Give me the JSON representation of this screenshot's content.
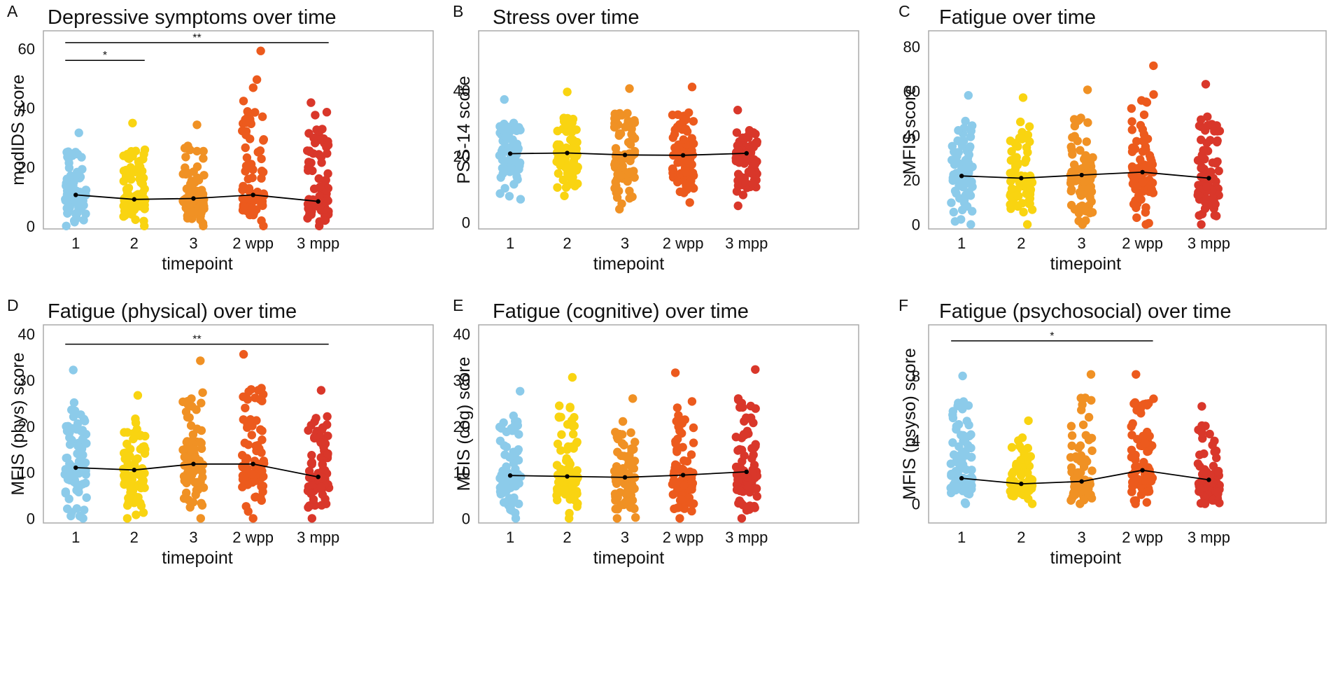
{
  "figure": {
    "timepoints": [
      "1",
      "2",
      "3",
      "2 wpp",
      "3 mpp"
    ],
    "timepoint_colors": [
      "#8ccbea",
      "#f9d411",
      "#f09124",
      "#ec5a1d",
      "#d9372a"
    ]
  },
  "chart_data": [
    {
      "type": "scatter",
      "panel": "A",
      "title": "Depressive symptoms over time",
      "xlabel": "timepoint",
      "ylabel": "modIDS score",
      "categories": [
        "1",
        "2",
        "3",
        "2 wpp",
        "3 mpp"
      ],
      "ylim": [
        -1,
        66
      ],
      "yticks": [
        0,
        20,
        40,
        60
      ],
      "means": [
        10.5,
        9.0,
        9.3,
        10.5,
        8.3
      ],
      "maxima": [
        31.5,
        34.8,
        34.2,
        59.2,
        41.7
      ],
      "extremes": [
        [],
        [],
        [],
        [
          49.5,
          36,
          35,
          25
        ],
        [
          38.5,
          37.5,
          24.5
        ]
      ],
      "significance": [
        {
          "from": 0,
          "to": 4,
          "label": "**",
          "y": 62
        },
        {
          "from": 0,
          "to": 1,
          "label": "*",
          "y": 56
        }
      ]
    },
    {
      "type": "scatter",
      "panel": "B",
      "title": "Stress over time",
      "xlabel": "timepoint",
      "ylabel": "PSS-14 score",
      "categories": [
        "1",
        "2",
        "3",
        "2 wpp",
        "3 mpp"
      ],
      "ylim": [
        -2,
        58
      ],
      "yticks": [
        0,
        20,
        40
      ],
      "means": [
        20.8,
        21.0,
        20.4,
        20.3,
        20.9
      ],
      "mins": [
        7,
        8,
        4,
        6,
        5
      ],
      "maxima": [
        37.2,
        39.5,
        40.5,
        41.0,
        34.0
      ],
      "significance": []
    },
    {
      "type": "scatter",
      "panel": "C",
      "title": "Fatigue over time",
      "xlabel": "timepoint",
      "ylabel": "MFIS score",
      "categories": [
        "1",
        "2",
        "3",
        "2 wpp",
        "3 mpp"
      ],
      "ylim": [
        -2,
        87
      ],
      "yticks": [
        0,
        20,
        40,
        60,
        80
      ],
      "means": [
        21.8,
        20.8,
        22.2,
        23.5,
        20.8
      ],
      "maxima": [
        58.0,
        57.0,
        60.5,
        71.3,
        63.0
      ],
      "significance": []
    },
    {
      "type": "scatter",
      "panel": "D",
      "title": "Fatigue (physical) over time",
      "xlabel": "timepoint",
      "ylabel": "MFIS (phys) score",
      "categories": [
        "1",
        "2",
        "3",
        "2 wpp",
        "3 mpp"
      ],
      "ylim": [
        -1,
        42
      ],
      "yticks": [
        0,
        10,
        20,
        30,
        40
      ],
      "means": [
        11.0,
        10.5,
        11.8,
        11.8,
        9.0
      ],
      "maxima": [
        32.2,
        26.7,
        34.2,
        35.6,
        27.8
      ],
      "significance": [
        {
          "from": 0,
          "to": 4,
          "label": "**",
          "y": 37.8
        }
      ]
    },
    {
      "type": "scatter",
      "panel": "E",
      "title": "Fatigue (cognitive) over time",
      "xlabel": "timepoint",
      "ylabel": "MFIS (cog) score",
      "categories": [
        "1",
        "2",
        "3",
        "2 wpp",
        "3 mpp"
      ],
      "ylim": [
        -1,
        42
      ],
      "yticks": [
        0,
        10,
        20,
        30,
        40
      ],
      "means": [
        9.3,
        9.1,
        8.9,
        9.4,
        10.1
      ],
      "maxima": [
        27.6,
        30.6,
        26.0,
        31.6,
        32.3
      ],
      "significance": []
    },
    {
      "type": "scatter",
      "panel": "F",
      "title": "Fatigue (psychosocial) over time",
      "xlabel": "timepoint",
      "ylabel": "MFIS (psyso) score",
      "categories": [
        "1",
        "2",
        "3",
        "2 wpp",
        "3 mpp"
      ],
      "ylim": [
        -1.2,
        11.2
      ],
      "yticks": [
        0,
        4,
        8
      ],
      "means": [
        1.6,
        1.25,
        1.4,
        2.1,
        1.5
      ],
      "maxima": [
        8.0,
        5.2,
        8.1,
        8.1,
        6.1
      ],
      "significance": [
        {
          "from": 0,
          "to": 3,
          "label": "*",
          "y": 10.2
        }
      ]
    }
  ]
}
